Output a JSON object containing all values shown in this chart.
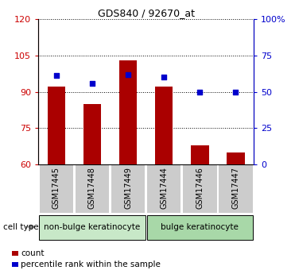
{
  "title": "GDS840 / 92670_at",
  "categories": [
    "GSM17445",
    "GSM17448",
    "GSM17449",
    "GSM17444",
    "GSM17446",
    "GSM17447"
  ],
  "counts": [
    92,
    85,
    103,
    92,
    68,
    65
  ],
  "percentiles": [
    61,
    56,
    62,
    60,
    50,
    50
  ],
  "ylim_left": [
    60,
    120
  ],
  "yticks_left": [
    60,
    75,
    90,
    105,
    120
  ],
  "ylim_right": [
    0,
    100
  ],
  "yticks_right": [
    0,
    25,
    50,
    75,
    100
  ],
  "yticklabels_right": [
    "0",
    "25",
    "50",
    "75",
    "100%"
  ],
  "bar_color": "#AA0000",
  "dot_color": "#0000CC",
  "left_tick_color": "#CC0000",
  "right_tick_color": "#0000CC",
  "grid_color": "#000000",
  "group1": {
    "label": "non-bulge keratinocyte",
    "indices": [
      0,
      1,
      2
    ],
    "color": "#C8E8C8"
  },
  "group2": {
    "label": "bulge keratinocyte",
    "indices": [
      3,
      4,
      5
    ],
    "color": "#A8D8A8"
  },
  "cell_type_label": "cell type",
  "legend_count_label": "count",
  "legend_percentile_label": "percentile rank within the sample",
  "bar_width": 0.5,
  "dot_size": 20,
  "xtick_bg": "#CCCCCC"
}
